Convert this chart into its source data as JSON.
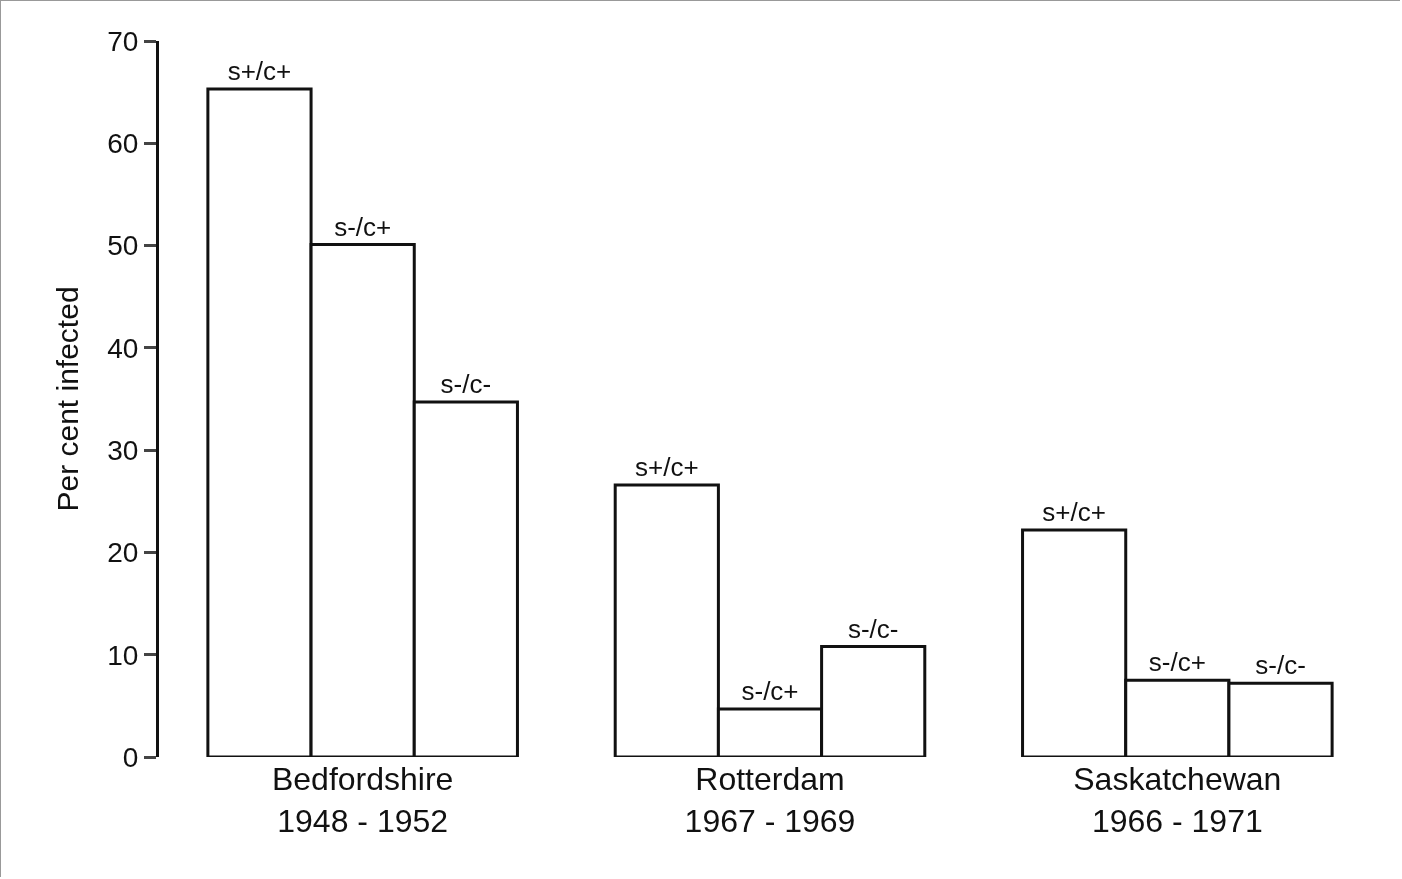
{
  "chart_data": {
    "type": "bar",
    "ylabel": "Per cent infected",
    "categories": [
      "Bedfordshire\n1948 - 1952",
      "Rotterdam\n1967 - 1969",
      "Saskatchewan\n1966 - 1971"
    ],
    "series": [
      {
        "name": "s+/c+",
        "color": "#ffffff",
        "values": [
          65.3,
          26.6,
          22.2
        ]
      },
      {
        "name": "s-/c+",
        "color": "#ffffff",
        "values": [
          50.1,
          4.7,
          7.5
        ]
      },
      {
        "name": "s-/c-",
        "color": "#ffffff",
        "values": [
          34.7,
          10.8,
          7.2
        ]
      }
    ],
    "ylim": [
      0,
      70
    ],
    "yticks": [
      0,
      10,
      20,
      30,
      40,
      50,
      60,
      70
    ],
    "grid": false,
    "legend": false
  }
}
